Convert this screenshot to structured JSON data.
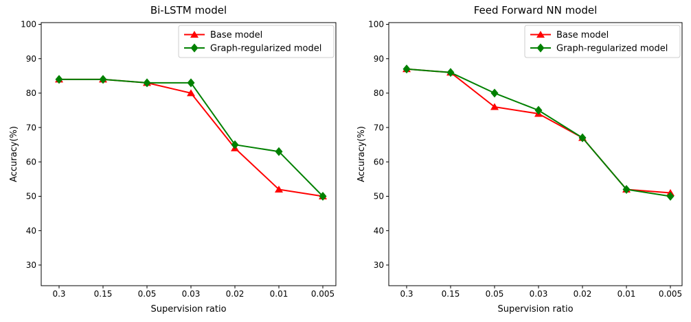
{
  "figure": {
    "background": "#ffffff",
    "text_color": "#000000",
    "spine_color": "#000000",
    "legend_border_color": "#cccccc",
    "legend_fill": "#ffffff"
  },
  "chart_data": [
    {
      "type": "line",
      "title": "Bi-LSTM model",
      "xlabel": "Supervision ratio",
      "ylabel": "Accuracy(%)",
      "categories": [
        "0.3",
        "0.15",
        "0.05",
        "0.03",
        "0.02",
        "0.01",
        "0.005"
      ],
      "yticks": [
        30,
        40,
        50,
        60,
        70,
        80,
        90,
        100
      ],
      "ylim": [
        24,
        100.5
      ],
      "grid": false,
      "legend": {
        "position": "upper right",
        "entries": [
          "Base model",
          "Graph-regularized model"
        ]
      },
      "series": [
        {
          "name": "Base model",
          "color": "#ff0000",
          "marker": "triangle-up",
          "values": [
            84,
            84,
            83,
            80,
            64,
            52,
            50
          ]
        },
        {
          "name": "Graph-regularized model",
          "color": "#008000",
          "marker": "diamond",
          "values": [
            84,
            84,
            83,
            83,
            65,
            63,
            50
          ]
        }
      ]
    },
    {
      "type": "line",
      "title": "Feed Forward NN model",
      "xlabel": "Supervision ratio",
      "ylabel": "Accuracy(%)",
      "categories": [
        "0.3",
        "0.15",
        "0.05",
        "0.03",
        "0.02",
        "0.01",
        "0.005"
      ],
      "yticks": [
        30,
        40,
        50,
        60,
        70,
        80,
        90,
        100
      ],
      "ylim": [
        24,
        100.5
      ],
      "grid": false,
      "legend": {
        "position": "upper right",
        "entries": [
          "Base model",
          "Graph-regularized model"
        ]
      },
      "series": [
        {
          "name": "Base model",
          "color": "#ff0000",
          "marker": "triangle-up",
          "values": [
            87,
            86,
            76,
            74,
            67,
            52,
            51
          ]
        },
        {
          "name": "Graph-regularized model",
          "color": "#008000",
          "marker": "diamond",
          "values": [
            87,
            86,
            80,
            75,
            67,
            52,
            50
          ]
        }
      ]
    }
  ]
}
